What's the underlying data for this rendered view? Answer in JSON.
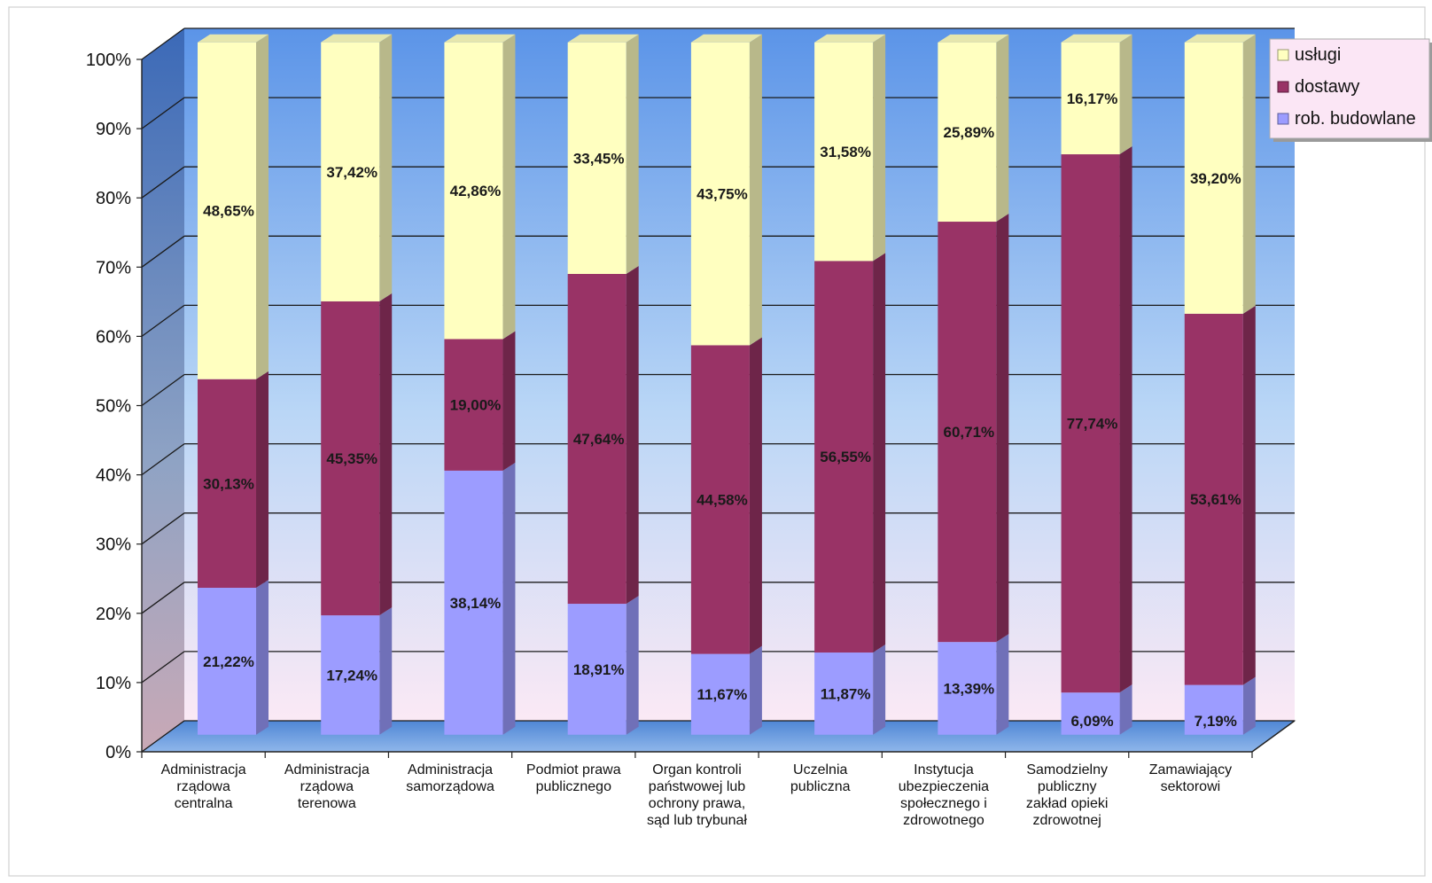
{
  "chart_data": {
    "type": "bar",
    "stacked": true,
    "percent_stacked": true,
    "three_d": true,
    "title": "",
    "xlabel": "",
    "ylabel": "",
    "ylim": [
      0,
      100
    ],
    "yticks": [
      "0%",
      "10%",
      "20%",
      "30%",
      "40%",
      "50%",
      "60%",
      "70%",
      "80%",
      "90%",
      "100%"
    ],
    "grid": true,
    "legend_position": "top-right",
    "categories": [
      [
        "Administracja",
        "rządowa",
        "centralna"
      ],
      [
        "Administracja",
        "rządowa",
        "terenowa"
      ],
      [
        "Administracja",
        "samorządowa"
      ],
      [
        "Podmiot prawa",
        "publicznego"
      ],
      [
        "Organ kontroli",
        "państwowej lub",
        "ochrony prawa,",
        "sąd lub trybunał"
      ],
      [
        "Uczelnia",
        "publiczna"
      ],
      [
        "Instytucja",
        "ubezpieczenia",
        "społecznego i",
        "zdrowotnego"
      ],
      [
        "Samodzielny",
        "publiczny",
        "zakład opieki",
        "zdrowotnej"
      ],
      [
        "Zamawiający",
        "sektorowi"
      ]
    ],
    "series": [
      {
        "name": "rob. budowlane",
        "color": "#9c9cff",
        "values": [
          21.22,
          17.24,
          38.14,
          18.91,
          11.67,
          11.87,
          13.39,
          6.09,
          7.19
        ],
        "labels": [
          "21,22%",
          "17,24%",
          "38,14%",
          "18,91%",
          "11,67%",
          "11,87%",
          "13,39%",
          "6,09%",
          "7,19%"
        ]
      },
      {
        "name": "dostawy",
        "color": "#993366",
        "values": [
          30.13,
          45.35,
          19.0,
          47.64,
          44.58,
          56.55,
          60.71,
          77.74,
          53.61
        ],
        "labels": [
          "30,13%",
          "45,35%",
          "19,00%",
          "47,64%",
          "44,58%",
          "56,55%",
          "60,71%",
          "77,74%",
          "53,61%"
        ]
      },
      {
        "name": "usługi",
        "color": "#ffffc0",
        "values": [
          48.65,
          37.42,
          42.86,
          33.45,
          43.75,
          31.58,
          25.89,
          16.17,
          39.2
        ],
        "labels": [
          "48,65%",
          "37,42%",
          "42,86%",
          "33,45%",
          "43,75%",
          "31,58%",
          "25,89%",
          "16,17%",
          "39,20%"
        ]
      }
    ],
    "legend_order": [
      "usługi",
      "dostawy",
      "rob. budowlane"
    ]
  }
}
